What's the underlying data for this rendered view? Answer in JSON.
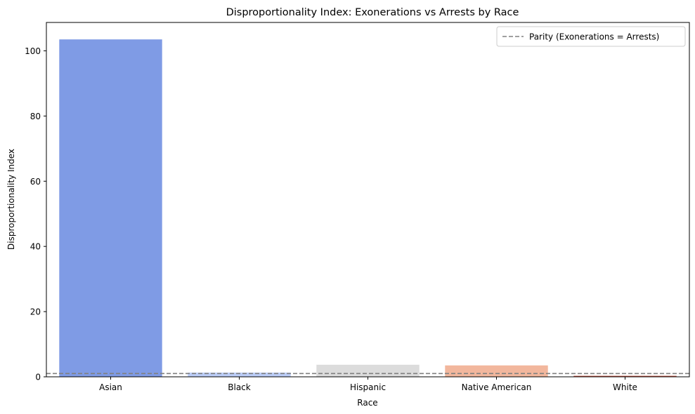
{
  "chart_data": {
    "type": "bar",
    "title": "Disproportionality Index: Exonerations vs Arrests by Race",
    "xlabel": "Race",
    "ylabel": "Disproportionality Index",
    "categories": [
      "Asian",
      "Black",
      "Hispanic",
      "Native American",
      "White"
    ],
    "values": [
      103.5,
      1.3,
      3.7,
      3.5,
      0.3
    ],
    "colors": [
      "#7f9be5",
      "#bccef8",
      "#dcdcdc",
      "#f2b79d",
      "#c5513f"
    ],
    "ylim": [
      0,
      108.7
    ],
    "yticks": [
      0,
      20,
      40,
      60,
      80,
      100
    ],
    "reference_line": {
      "y": 1,
      "label": "Parity (Exonerations = Arrests)",
      "color": "#808080",
      "style": "dashed"
    },
    "legend": {
      "position": "top-right"
    },
    "grid": false
  }
}
